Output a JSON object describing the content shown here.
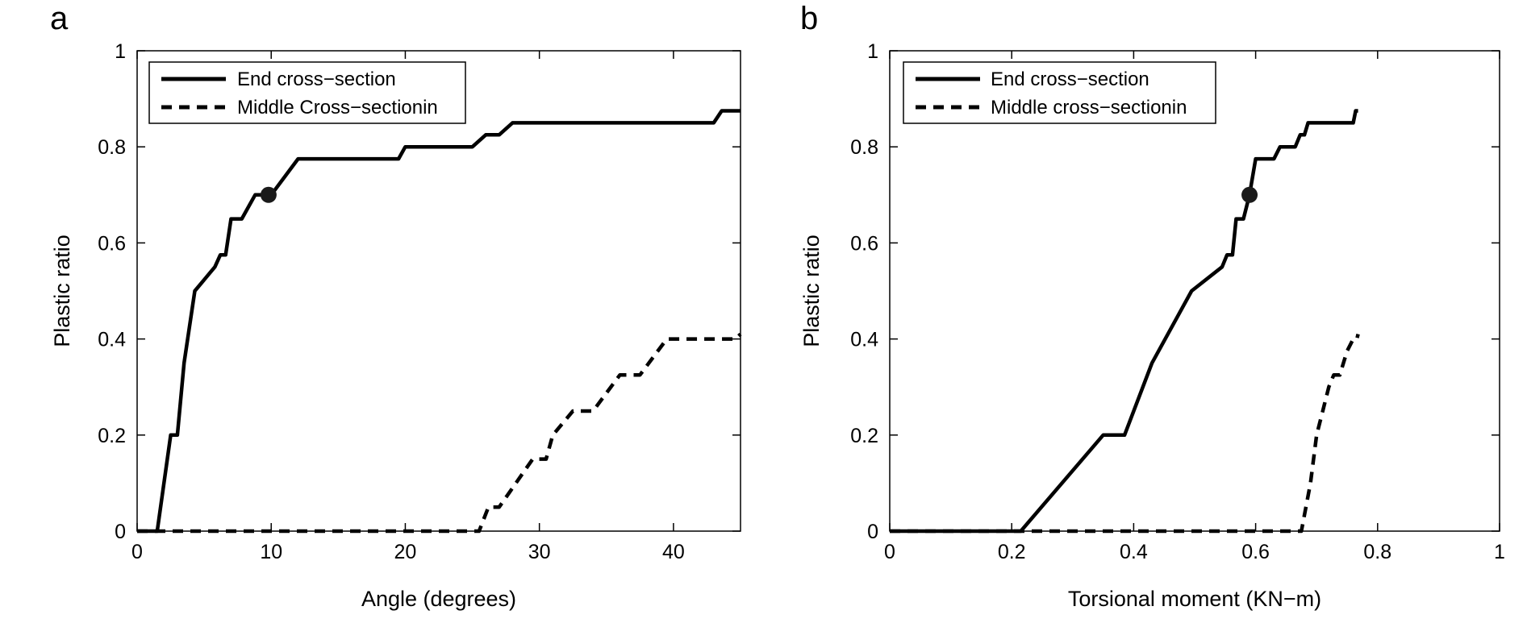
{
  "chart_data": [
    {
      "panel": "a",
      "type": "line",
      "xlabel": "Angle (degrees)",
      "ylabel": "Plastic ratio",
      "xlim": [
        0,
        45
      ],
      "ylim": [
        0,
        1
      ],
      "xticks": [
        0,
        10,
        20,
        30,
        40
      ],
      "yticks": [
        0,
        0.2,
        0.4,
        0.6,
        0.8,
        1
      ],
      "ytick_labels": [
        "0",
        "0.2",
        "0.4",
        "0.6",
        "0.8",
        "1"
      ],
      "legend_position": "top-left",
      "grid": false,
      "series": [
        {
          "name": "End cross−section",
          "style": "solid",
          "color": "#000000",
          "points": [
            [
              0,
              0
            ],
            [
              1.5,
              0
            ],
            [
              2.5,
              0.2
            ],
            [
              3,
              0.2
            ],
            [
              3.5,
              0.35
            ],
            [
              4.3,
              0.5
            ],
            [
              5.8,
              0.55
            ],
            [
              6.2,
              0.575
            ],
            [
              6.6,
              0.575
            ],
            [
              7,
              0.65
            ],
            [
              7.5,
              0.65
            ],
            [
              7.8,
              0.65
            ],
            [
              8.8,
              0.7
            ],
            [
              10,
              0.7
            ],
            [
              12,
              0.775
            ],
            [
              15,
              0.775
            ],
            [
              19.5,
              0.775
            ],
            [
              20,
              0.8
            ],
            [
              25,
              0.8
            ],
            [
              26,
              0.825
            ],
            [
              27,
              0.825
            ],
            [
              28,
              0.85
            ],
            [
              30,
              0.85
            ],
            [
              35,
              0.85
            ],
            [
              40,
              0.85
            ],
            [
              43,
              0.85
            ],
            [
              43.6,
              0.875
            ],
            [
              45,
              0.875
            ]
          ]
        },
        {
          "name": "Middle Cross−sectionin",
          "style": "dashed",
          "color": "#000000",
          "points": [
            [
              0,
              0
            ],
            [
              25.5,
              0
            ],
            [
              26.2,
              0.05
            ],
            [
              27,
              0.05
            ],
            [
              29.5,
              0.15
            ],
            [
              30.5,
              0.15
            ],
            [
              31,
              0.2
            ],
            [
              32.5,
              0.25
            ],
            [
              34,
              0.25
            ],
            [
              36,
              0.325
            ],
            [
              37.5,
              0.325
            ],
            [
              39.5,
              0.4
            ],
            [
              41,
              0.4
            ],
            [
              44.6,
              0.4
            ],
            [
              45,
              0.41
            ]
          ]
        }
      ],
      "markers": [
        {
          "x": 9.8,
          "y": 0.7
        }
      ]
    },
    {
      "panel": "b",
      "type": "line",
      "xlabel": "Torsional moment (KN−m)",
      "ylabel": "Plastic ratio",
      "xlim": [
        0,
        1
      ],
      "ylim": [
        0,
        1
      ],
      "xticks": [
        0,
        0.2,
        0.4,
        0.6,
        0.8,
        1
      ],
      "xtick_labels": [
        "0",
        "0.2",
        "0.4",
        "0.6",
        "0.8",
        "1"
      ],
      "yticks": [
        0,
        0.2,
        0.4,
        0.6,
        0.8,
        1
      ],
      "ytick_labels": [
        "0",
        "0.2",
        "0.4",
        "0.6",
        "0.8",
        "1"
      ],
      "legend_position": "top-left",
      "grid": false,
      "series": [
        {
          "name": "End cross−section",
          "style": "solid",
          "color": "#000000",
          "points": [
            [
              0,
              0
            ],
            [
              0.215,
              0
            ],
            [
              0.35,
              0.2
            ],
            [
              0.385,
              0.2
            ],
            [
              0.43,
              0.35
            ],
            [
              0.495,
              0.5
            ],
            [
              0.545,
              0.55
            ],
            [
              0.553,
              0.575
            ],
            [
              0.562,
              0.575
            ],
            [
              0.568,
              0.65
            ],
            [
              0.575,
              0.65
            ],
            [
              0.58,
              0.65
            ],
            [
              0.59,
              0.7
            ],
            [
              0.6,
              0.775
            ],
            [
              0.63,
              0.775
            ],
            [
              0.64,
              0.8
            ],
            [
              0.665,
              0.8
            ],
            [
              0.673,
              0.825
            ],
            [
              0.68,
              0.825
            ],
            [
              0.686,
              0.85
            ],
            [
              0.76,
              0.85
            ],
            [
              0.764,
              0.875
            ],
            [
              0.768,
              0.875
            ]
          ]
        },
        {
          "name": "Middle cross−sectionin",
          "style": "dashed",
          "color": "#000000",
          "points": [
            [
              0,
              0
            ],
            [
              0.675,
              0
            ],
            [
              0.69,
              0.1
            ],
            [
              0.7,
              0.2
            ],
            [
              0.71,
              0.25
            ],
            [
              0.72,
              0.3
            ],
            [
              0.728,
              0.325
            ],
            [
              0.738,
              0.325
            ],
            [
              0.75,
              0.375
            ],
            [
              0.76,
              0.4
            ],
            [
              0.766,
              0.4
            ],
            [
              0.768,
              0.41
            ]
          ]
        }
      ],
      "markers": [
        {
          "x": 0.59,
          "y": 0.7
        }
      ]
    }
  ]
}
